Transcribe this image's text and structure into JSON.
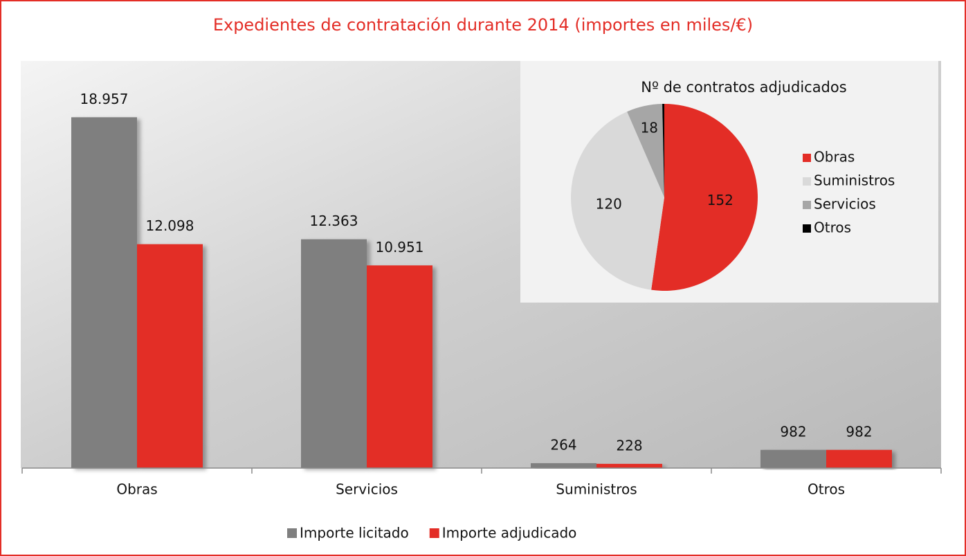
{
  "title": "Expedientes de contratación durante 2014 (importes en miles/€)",
  "chart_data": [
    {
      "type": "bar",
      "categories": [
        "Obras",
        "Servicios",
        "Suministros",
        "Otros"
      ],
      "series": [
        {
          "name": "Importe licitado",
          "color": "#7f7f7f",
          "values": [
            18957,
            12363,
            264,
            982
          ],
          "value_labels": [
            "18.957",
            "12.363",
            "264",
            "982"
          ]
        },
        {
          "name": "Importe adjudicado",
          "color": "#e32d26",
          "values": [
            12098,
            10951,
            228,
            982
          ],
          "value_labels": [
            "12.098",
            "10.951",
            "228",
            "982"
          ]
        }
      ],
      "ylim": [
        0,
        22000
      ],
      "legend": "bottom"
    },
    {
      "type": "pie",
      "title": "Nº de contratos adjudicados",
      "categories": [
        "Obras",
        "Suministros",
        "Servicios",
        "Otros"
      ],
      "values": [
        152,
        120,
        18,
        1
      ],
      "colors": [
        "#e32d26",
        "#d9d9d9",
        "#a6a6a6",
        "#000000"
      ],
      "legend": "right"
    }
  ]
}
